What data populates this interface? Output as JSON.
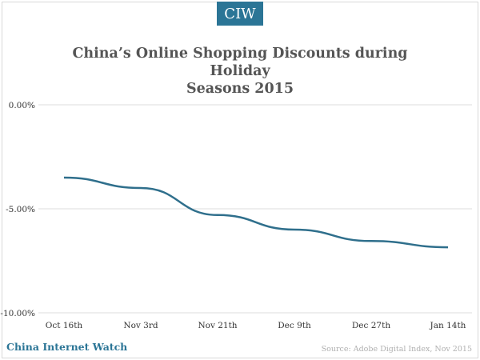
{
  "header": {
    "logo_text": "CIW"
  },
  "footer": {
    "brand": "China Internet Watch",
    "source": "Source: Adobe Digital Index, Nov 2015"
  },
  "colors": {
    "accent": "#2b7596",
    "line": "#2f6f8c",
    "grid": "#dddddd"
  },
  "chart_data": {
    "type": "line",
    "title": "China’s Online Shopping Discounts during Holiday Seasons 2015",
    "title_lines": [
      "China’s Online Shopping Discounts during Holiday",
      "Seasons 2015"
    ],
    "categories": [
      "Oct 16th",
      "Nov 3rd",
      "Nov 21th",
      "Dec 9th",
      "Dec 27th",
      "Jan 14th"
    ],
    "x": [
      0,
      18,
      36,
      54,
      72,
      90
    ],
    "values": [
      -3.5,
      -4.0,
      -5.3,
      -6.0,
      -6.55,
      -6.85
    ],
    "ylim": [
      -10,
      0
    ],
    "yticks": [
      0,
      -5,
      -10
    ],
    "ytick_labels": [
      "0.00%",
      "-5.00%",
      "-10.00%"
    ],
    "xlim": [
      -6,
      90
    ],
    "grid": true,
    "legend": "none"
  }
}
